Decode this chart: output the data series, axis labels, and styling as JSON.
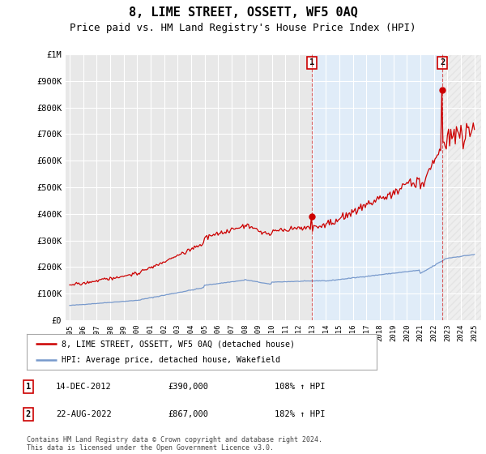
{
  "title": "8, LIME STREET, OSSETT, WF5 0AQ",
  "subtitle": "Price paid vs. HM Land Registry's House Price Index (HPI)",
  "title_fontsize": 11,
  "subtitle_fontsize": 9,
  "bg_color": "#ffffff",
  "plot_bg_color": "#e8e8e8",
  "grid_color": "#ffffff",
  "red_color": "#cc0000",
  "blue_color": "#7799cc",
  "shade_color": "#ddeeff",
  "ylim": [
    0,
    1000000
  ],
  "xlim_start": 1994.7,
  "xlim_end": 2025.5,
  "yticks": [
    0,
    100000,
    200000,
    300000,
    400000,
    500000,
    600000,
    700000,
    800000,
    900000,
    1000000
  ],
  "ytick_labels": [
    "£0",
    "£100K",
    "£200K",
    "£300K",
    "£400K",
    "£500K",
    "£600K",
    "£700K",
    "£800K",
    "£900K",
    "£1M"
  ],
  "xticks": [
    1995,
    1996,
    1997,
    1998,
    1999,
    2000,
    2001,
    2002,
    2003,
    2004,
    2005,
    2006,
    2007,
    2008,
    2009,
    2010,
    2011,
    2012,
    2013,
    2014,
    2015,
    2016,
    2017,
    2018,
    2019,
    2020,
    2021,
    2022,
    2023,
    2024,
    2025
  ],
  "legend_label_red": "8, LIME STREET, OSSETT, WF5 0AQ (detached house)",
  "legend_label_blue": "HPI: Average price, detached house, Wakefield",
  "point1_x": 2012.95,
  "point1_y": 390000,
  "point1_label": "1",
  "point1_date": "14-DEC-2012",
  "point1_price": "£390,000",
  "point1_hpi": "108% ↑ HPI",
  "point2_x": 2022.63,
  "point2_y": 867000,
  "point2_label": "2",
  "point2_date": "22-AUG-2022",
  "point2_price": "£867,000",
  "point2_hpi": "182% ↑ HPI",
  "footer": "Contains HM Land Registry data © Crown copyright and database right 2024.\nThis data is licensed under the Open Government Licence v3.0."
}
